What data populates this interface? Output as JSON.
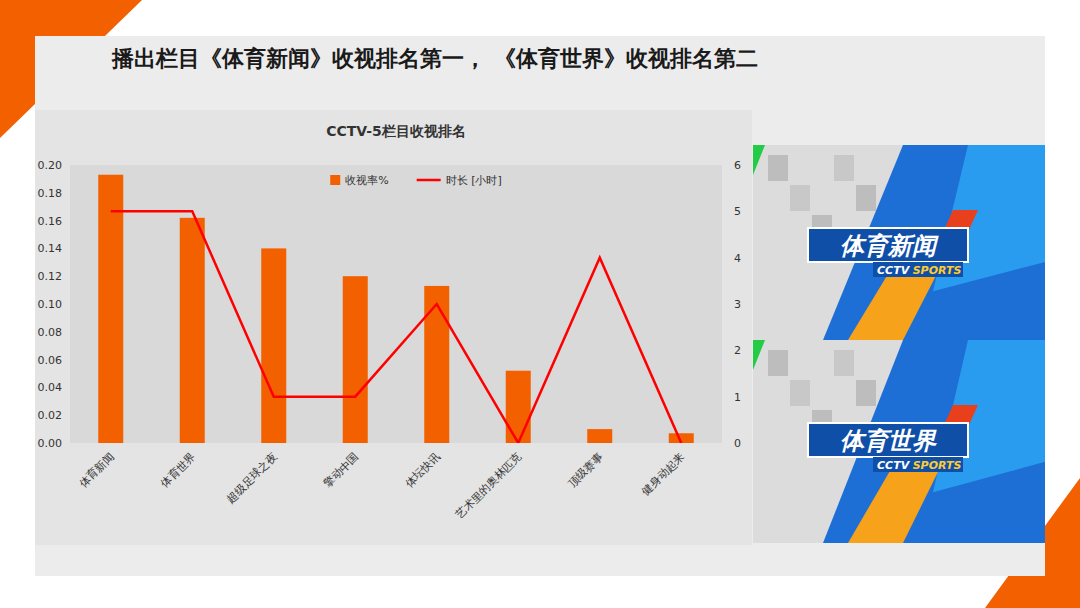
{
  "page": {
    "title": "播出栏目《体育新闻》收视排名第一， 《体育世界》收视排名第二",
    "panels": [
      {
        "logo": "体育新闻",
        "brand": [
          "CCTV",
          "SPORTS"
        ]
      },
      {
        "logo": "体育世界",
        "brand": [
          "CCTV",
          "SPORTS"
        ]
      }
    ]
  },
  "chart_data": {
    "type": "bar",
    "title": "CCTV-5栏目收视排名",
    "categories": [
      "体育新闻",
      "体育世界",
      "超级足球之夜",
      "擎动中国",
      "体坛快讯",
      "艺术里的奥林匹克",
      "顶级赛事",
      "健身动起来"
    ],
    "series": [
      {
        "name": "收视率%",
        "type": "bar",
        "color": "#f26000",
        "values": [
          0.193,
          0.162,
          0.14,
          0.12,
          0.113,
          0.052,
          0.01,
          0.007
        ]
      },
      {
        "name": "时长 [小时]",
        "type": "line",
        "color": "#ff0000",
        "axis": "y2",
        "values": [
          5,
          5,
          1,
          1,
          3,
          0,
          4,
          0
        ]
      }
    ],
    "ylim": [
      0,
      0.2
    ],
    "yticks": [
      {
        "value": 0,
        "label": "0.00"
      },
      {
        "value": 0.02,
        "label": "0.02"
      },
      {
        "value": 0.04,
        "label": "0.04"
      },
      {
        "value": 0.06,
        "label": "0.06"
      },
      {
        "value": 0.08,
        "label": "0.08"
      },
      {
        "value": 0.1,
        "label": "0.10"
      },
      {
        "value": 0.12,
        "label": "0.12"
      },
      {
        "value": 0.14,
        "label": "0.14"
      },
      {
        "value": 0.16,
        "label": "0.16"
      },
      {
        "value": 0.18,
        "label": "0.18"
      },
      {
        "value": 0.2,
        "label": "0.20"
      }
    ],
    "y2lim": [
      0,
      6
    ],
    "y2ticks": [
      0,
      1,
      2,
      3,
      4,
      5,
      6
    ],
    "legend": "top",
    "grid": false
  }
}
